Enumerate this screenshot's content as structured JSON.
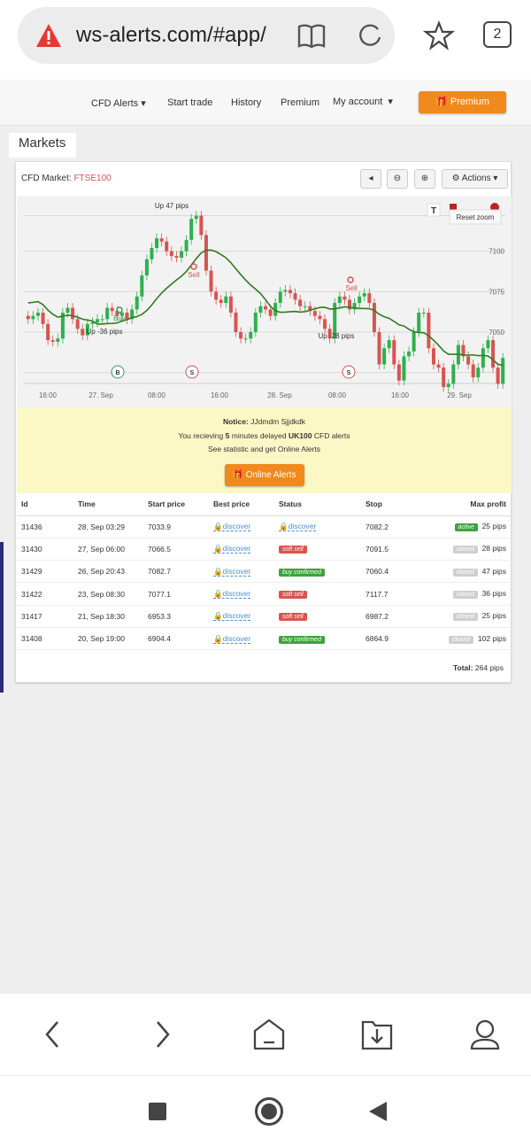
{
  "browser": {
    "url": "ws-alerts.com/#app/",
    "tab_count": "2",
    "icons": [
      "warning-icon",
      "reader-icon",
      "reload-icon",
      "star-icon",
      "tabs-icon"
    ]
  },
  "nav": {
    "cfd_alerts": "CFD Alerts",
    "start_trade": "Start trade",
    "history": "History",
    "premium_link": "Premium",
    "my_account": "My account",
    "premium_button": "Premium"
  },
  "markets_tab": "Markets",
  "panel": {
    "title_prefix": "CFD Market:",
    "symbol": "FTSE100",
    "actions": "Actions",
    "reset_zoom": "Reset zoom"
  },
  "chart_data": {
    "type": "candlestick",
    "y_ticks": [
      "7100",
      "7075",
      "7050"
    ],
    "ylim": [
      7010,
      7125
    ],
    "x_ticks": [
      "16:00",
      "27. Sep",
      "08:00",
      "16:00",
      "28. Sep",
      "08:00",
      "16:00",
      "29. Sep"
    ],
    "closes": [
      7058,
      7060,
      7062,
      7055,
      7045,
      7044,
      7046,
      7062,
      7065,
      7058,
      7052,
      7048,
      7055,
      7056,
      7058,
      7058,
      7065,
      7063,
      7060,
      7062,
      7058,
      7064,
      7072,
      7085,
      7095,
      7102,
      7108,
      7106,
      7100,
      7097,
      7096,
      7100,
      7107,
      7120,
      7122,
      7110,
      7088,
      7075,
      7070,
      7068,
      7072,
      7062,
      7050,
      7046,
      7046,
      7050,
      7062,
      7066,
      7064,
      7060,
      7068,
      7075,
      7076,
      7074,
      7070,
      7066,
      7066,
      7063,
      7060,
      7058,
      7052,
      7046,
      7068,
      7072,
      7070,
      7064,
      7068,
      7072,
      7074,
      7068,
      7050,
      7030,
      7040,
      7045,
      7030,
      7020,
      7035,
      7038,
      7050,
      7062,
      7062,
      7040,
      7030,
      7028,
      7016,
      7018,
      7030,
      7042,
      7035,
      7030,
      7022,
      7028,
      7040,
      7045,
      7028,
      7018,
      7034
    ],
    "annotations": [
      {
        "text": "Up 47 pips"
      },
      {
        "text": "Up -36 pips"
      },
      {
        "text": "Up -28 pips"
      },
      {
        "text": "Buy"
      },
      {
        "text": "Sell"
      },
      {
        "text": "Sell"
      }
    ],
    "markers": [
      "B",
      "S",
      "S"
    ],
    "up_color": "#2bb24c",
    "down_color": "#d9534f",
    "ma_color": "#2e7d1e"
  },
  "notice": {
    "label": "Notice:",
    "name": "JJdmdm Sjjdkdk",
    "line2_a": "You recieving",
    "minutes": "5",
    "line2_b": "minutes delayed",
    "symbol": "UK100",
    "line2_c": "CFD alerts",
    "line3": "See statistic and get Online Alerts",
    "button": "Online Alerts"
  },
  "table": {
    "headers": [
      "Id",
      "Time",
      "Start price",
      "Best price",
      "Status",
      "Stop",
      "Max profit"
    ],
    "rows": [
      {
        "id": "31436",
        "time": "28, Sep 03:29",
        "start": "7033.9",
        "best": "discover",
        "status": "discover",
        "status_color": "",
        "stop": "7082.2",
        "state": "active",
        "profit": "25 pips"
      },
      {
        "id": "31430",
        "time": "27, Sep 06:00",
        "start": "7066.5",
        "best": "discover",
        "status": "soft sell",
        "status_color": "#d9534f",
        "stop": "7091.5",
        "state": "closed",
        "profit": "28 pips"
      },
      {
        "id": "31429",
        "time": "26, Sep 20:43",
        "start": "7082.7",
        "best": "discover",
        "status": "buy confirmed",
        "status_color": "#3ca33c",
        "stop": "7060.4",
        "state": "closed",
        "profit": "47 pips"
      },
      {
        "id": "31422",
        "time": "23, Sep 08:30",
        "start": "7077.1",
        "best": "discover",
        "status": "soft sell",
        "status_color": "#d9534f",
        "stop": "7117.7",
        "state": "closed",
        "profit": "36 pips"
      },
      {
        "id": "31417",
        "time": "21, Sep 18:30",
        "start": "6953.3",
        "best": "discover",
        "status": "soft sell",
        "status_color": "#d9534f",
        "stop": "6987.2",
        "state": "closed",
        "profit": "25 pips"
      },
      {
        "id": "31408",
        "time": "20, Sep 19:00",
        "start": "6904.4",
        "best": "discover",
        "status": "buy confirmed",
        "status_color": "#3ca33c",
        "stop": "6864.9",
        "state": "closed",
        "profit": "102 pips"
      }
    ],
    "total_label": "Total:",
    "total_value": "264 pips"
  }
}
